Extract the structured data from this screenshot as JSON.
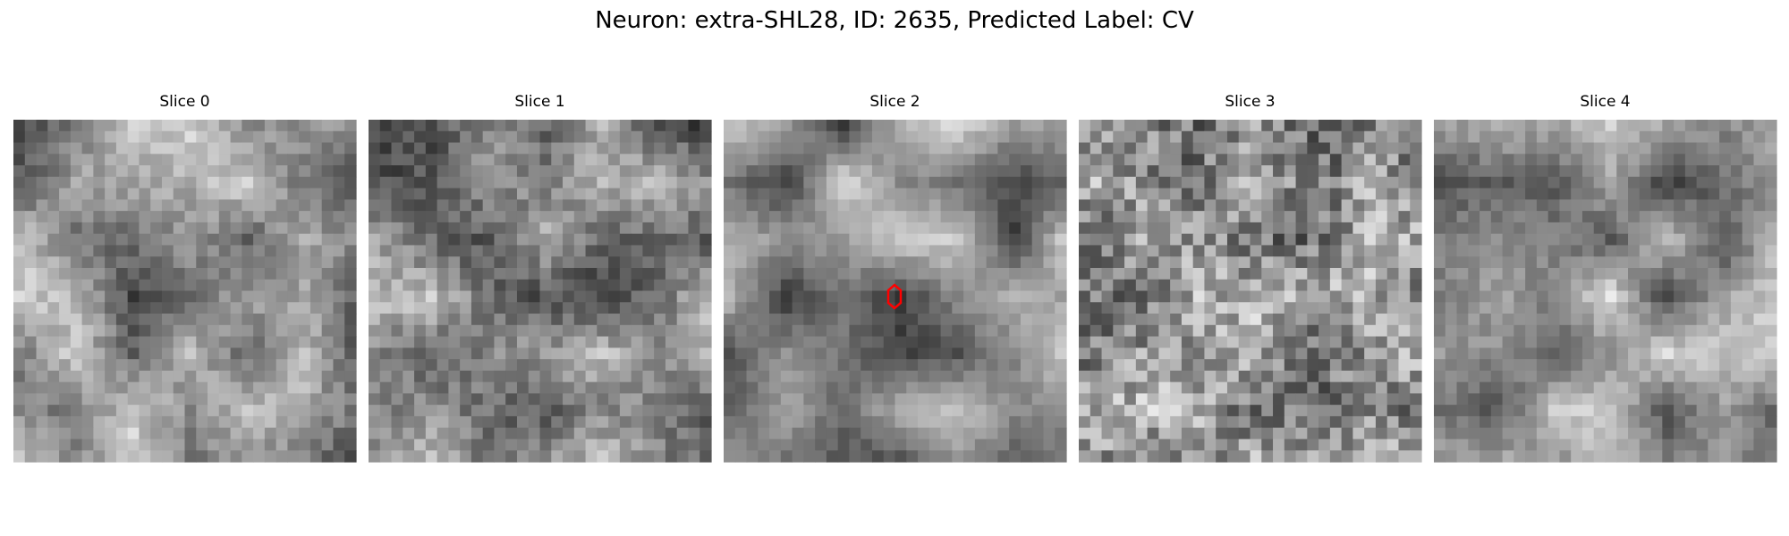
{
  "title": "Neuron: extra-SHL28, ID: 2635, Predicted Label: CV",
  "panels": [
    {
      "title": "Slice 0"
    },
    {
      "title": "Slice 1"
    },
    {
      "title": "Slice 2"
    },
    {
      "title": "Slice 3"
    },
    {
      "title": "Slice 4"
    }
  ]
}
